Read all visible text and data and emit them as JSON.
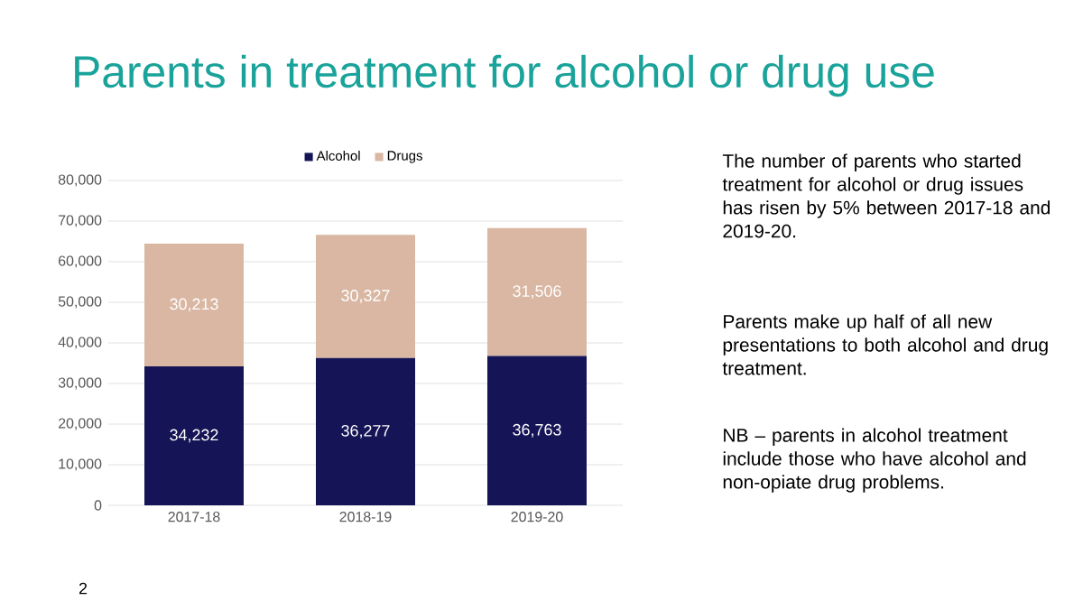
{
  "chart_data": {
    "type": "bar",
    "stacked": true,
    "title": "Parents in treatment for alcohol or drug use",
    "categories": [
      "2017-18",
      "2018-19",
      "2019-20"
    ],
    "series": [
      {
        "name": "Alcohol",
        "color": "#141456",
        "values": [
          34232,
          36277,
          36763
        ],
        "value_labels": [
          "34,232",
          "36,277",
          "36,763"
        ]
      },
      {
        "name": "Drugs",
        "color": "#d9b7a3",
        "values": [
          30213,
          30327,
          31506
        ],
        "value_labels": [
          "30,213",
          "30,327",
          "31,506"
        ]
      }
    ],
    "ylim": [
      0,
      80000
    ],
    "yticks": [
      {
        "value": 0,
        "label": "0"
      },
      {
        "value": 10000,
        "label": "10,000"
      },
      {
        "value": 20000,
        "label": "20,000"
      },
      {
        "value": 30000,
        "label": "30,000"
      },
      {
        "value": 40000,
        "label": "40,000"
      },
      {
        "value": 50000,
        "label": "50,000"
      },
      {
        "value": 60000,
        "label": "60,000"
      },
      {
        "value": 70000,
        "label": "70,000"
      },
      {
        "value": 80000,
        "label": "80,000"
      }
    ],
    "grid": "y",
    "legend": "top",
    "annotations": [
      "The number of parents who started treatment for alcohol or drug issues has risen by 5% between 2017-18 and 2019-20.",
      "Parents make up half of all new presentations to both alcohol and drug treatment.",
      "NB – parents in alcohol treatment include those who have alcohol and non-opiate drug problems.",
      "2"
    ]
  }
}
